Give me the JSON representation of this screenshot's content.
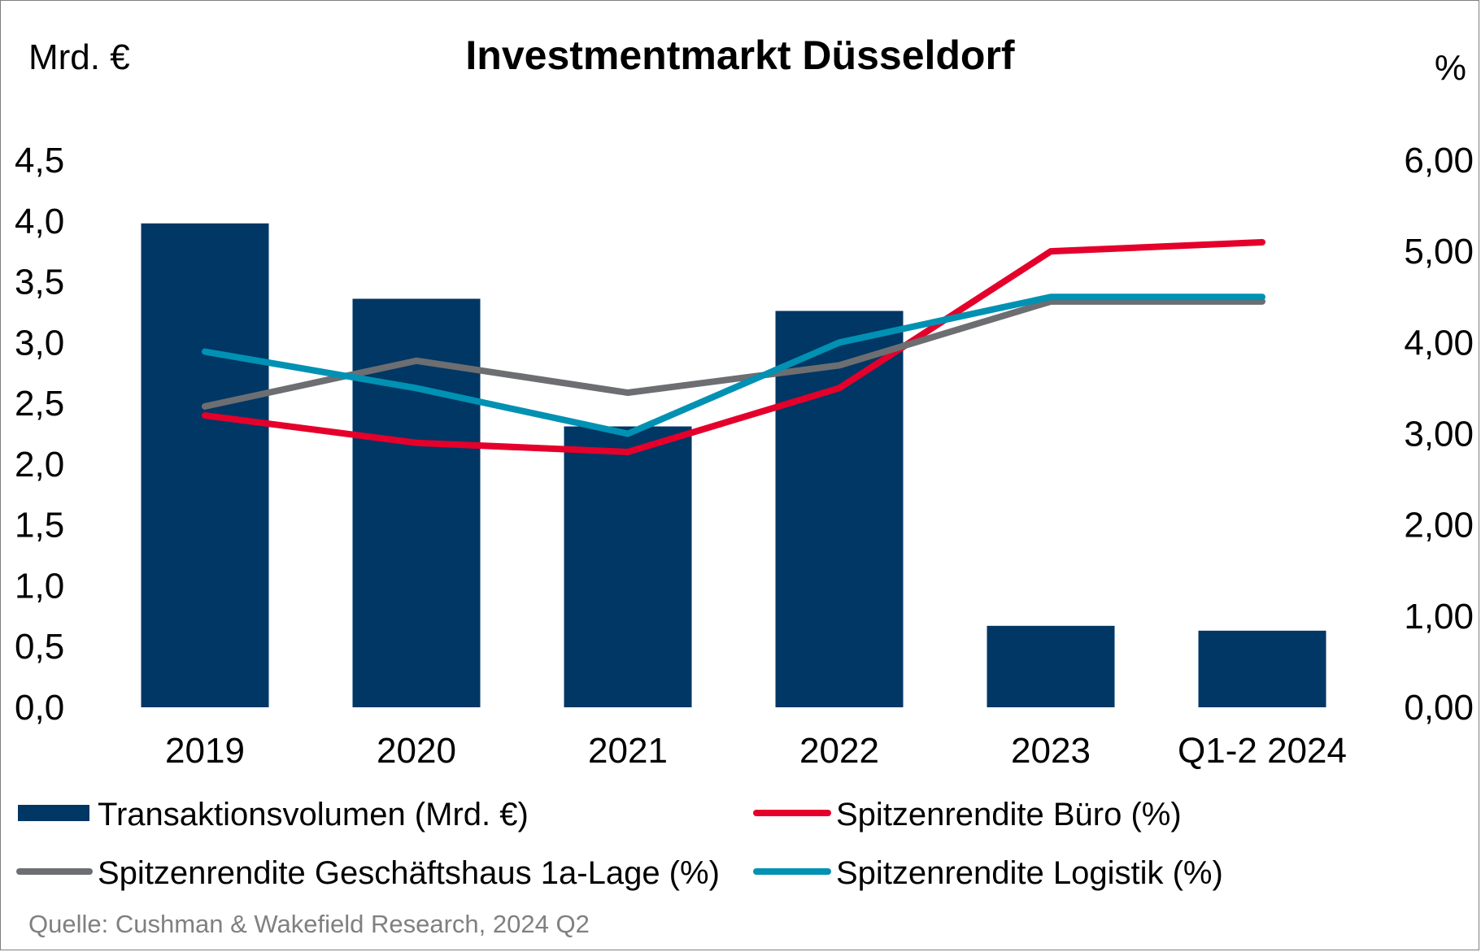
{
  "chart_data": {
    "type": "bar",
    "title": "Investmentmarkt Düsseldorf",
    "left_axis_unit": "Mrd. €",
    "right_axis_unit": "%",
    "categories": [
      "2019",
      "2020",
      "2021",
      "2022",
      "2023",
      "Q1-2 2024"
    ],
    "left_axis": {
      "ylim": [
        0,
        4.5
      ],
      "ticks": [
        "0,0",
        "0,5",
        "1,0",
        "1,5",
        "2,0",
        "2,5",
        "3,0",
        "3,5",
        "4,0",
        "4,5"
      ]
    },
    "right_axis": {
      "ylim": [
        0,
        6
      ],
      "ticks": [
        "0,00",
        "1,00",
        "2,00",
        "3,00",
        "4,00",
        "5,00",
        "6,00"
      ]
    },
    "bars": {
      "name": "Transaktionsvolumen (Mrd. €)",
      "color": "#003764",
      "values": [
        3.98,
        3.36,
        2.31,
        3.26,
        0.67,
        0.63
      ]
    },
    "series": [
      {
        "name": "Spitzenrendite Büro (%)",
        "color": "#e4002b",
        "axis": "right",
        "values": [
          3.2,
          2.9,
          2.8,
          3.5,
          5.0,
          5.1
        ]
      },
      {
        "name": "Spitzenrendite Geschäftshaus 1a-Lage (%)",
        "color": "#6d6e71",
        "axis": "right",
        "values": [
          3.3,
          3.8,
          3.45,
          3.75,
          4.45,
          4.45
        ]
      },
      {
        "name": "Spitzenrendite Logistik (%)",
        "color": "#0091b3",
        "axis": "right",
        "values": [
          3.9,
          3.5,
          3.0,
          4.0,
          4.5,
          4.5
        ]
      }
    ],
    "legend_position": "bottom"
  },
  "source": "Quelle: Cushman & Wakefield Research, 2024 Q2"
}
